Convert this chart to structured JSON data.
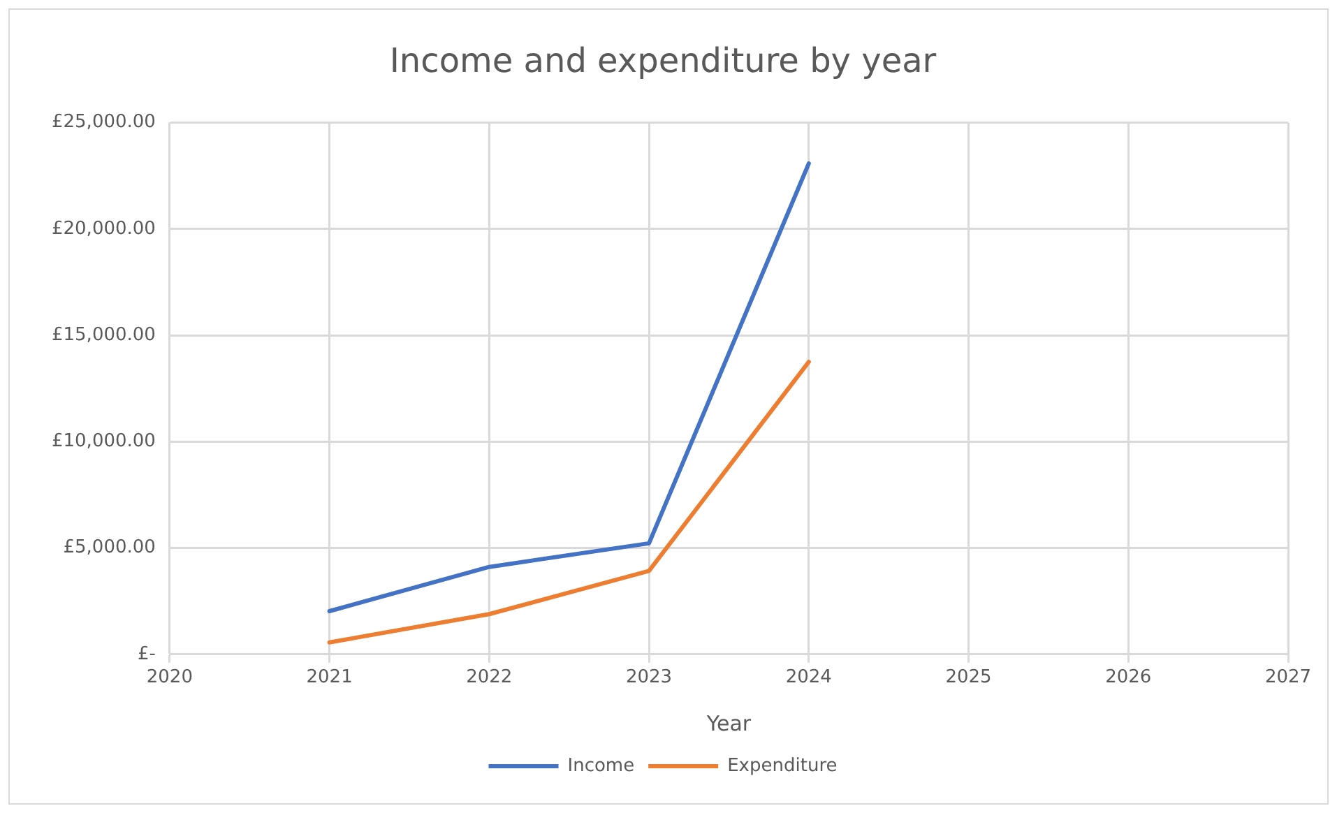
{
  "chart_data": {
    "type": "line",
    "title": "Income and expenditure by year",
    "xlabel": "Year",
    "x": [
      2021,
      2022,
      2023,
      2024
    ],
    "series": [
      {
        "name": "Income",
        "color": "#4472c4",
        "values": [
          2030,
          4110,
          5220,
          23080
        ]
      },
      {
        "name": "Expenditure",
        "color": "#ed7d31",
        "values": [
          560,
          1890,
          3920,
          13750
        ]
      }
    ],
    "xlim": [
      2020,
      2027
    ],
    "xticks": [
      2020,
      2021,
      2022,
      2023,
      2024,
      2025,
      2026,
      2027
    ],
    "ylim": [
      0,
      25000
    ],
    "yticks": [
      {
        "value": 0,
        "label": "£-"
      },
      {
        "value": 5000,
        "label": "£5,000.00"
      },
      {
        "value": 10000,
        "label": "£10,000.00"
      },
      {
        "value": 15000,
        "label": "£15,000.00"
      },
      {
        "value": 20000,
        "label": "£20,000.00"
      },
      {
        "value": 25000,
        "label": "£25,000.00"
      }
    ],
    "grid": true,
    "legend": "bottom",
    "marker": "none",
    "line_style": "solid"
  }
}
